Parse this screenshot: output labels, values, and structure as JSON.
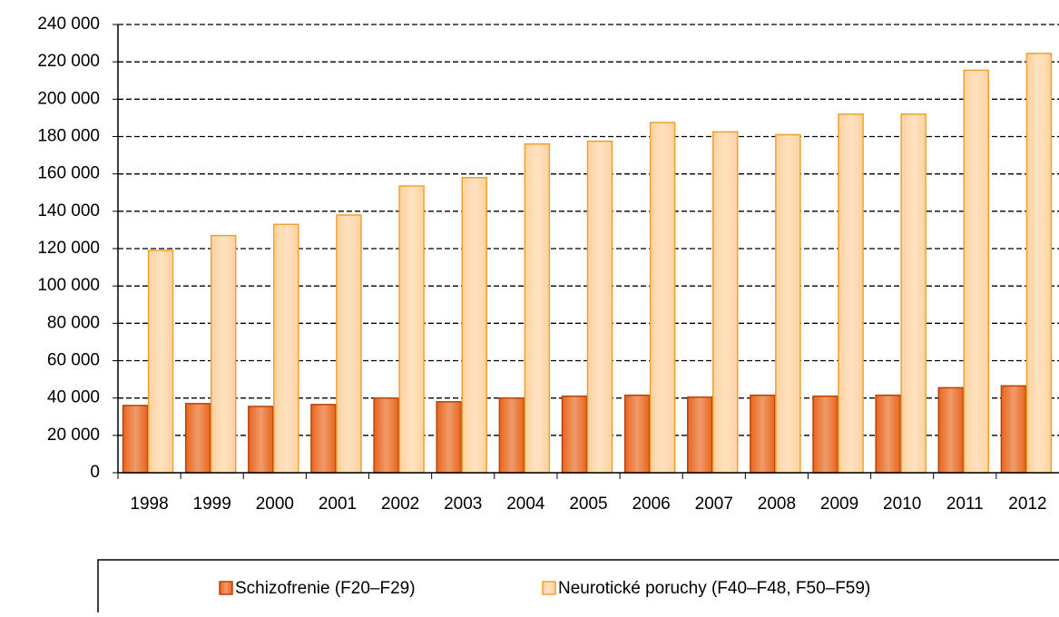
{
  "chart_data": {
    "type": "bar",
    "categories": [
      "1998",
      "1999",
      "2000",
      "2001",
      "2002",
      "2003",
      "2004",
      "2005",
      "2006",
      "2007",
      "2008",
      "2009",
      "2010",
      "2011",
      "2012"
    ],
    "series": [
      {
        "name": "Schizofrenie (F20–F29)",
        "color": "#e8651c",
        "edge": "#b8420a",
        "values": [
          36000,
          37000,
          35500,
          36500,
          40000,
          38000,
          40000,
          41000,
          41500,
          40500,
          41500,
          41000,
          41500,
          45500,
          46500
        ]
      },
      {
        "name": "Neurotické poruchy (F40–F48, F50–F59)",
        "color": "#fdd2a0",
        "edge": "#f0a030",
        "values": [
          119000,
          127000,
          133000,
          138000,
          153500,
          158000,
          176000,
          177500,
          187500,
          182500,
          181000,
          192000,
          192000,
          215500,
          224500
        ]
      }
    ],
    "ylim": [
      0,
      240000
    ],
    "yticks": [
      {
        "value": 0,
        "label": "0"
      },
      {
        "value": 20000,
        "label": "20 000"
      },
      {
        "value": 40000,
        "label": "40 000"
      },
      {
        "value": 60000,
        "label": "60 000"
      },
      {
        "value": 80000,
        "label": "80 000"
      },
      {
        "value": 100000,
        "label": "100 000"
      },
      {
        "value": 120000,
        "label": "120 000"
      },
      {
        "value": 140000,
        "label": "140 000"
      },
      {
        "value": 160000,
        "label": "160 000"
      },
      {
        "value": 180000,
        "label": "180 000"
      },
      {
        "value": 200000,
        "label": "200 000"
      },
      {
        "value": 220000,
        "label": "220 000"
      },
      {
        "value": 240000,
        "label": "240 000"
      }
    ],
    "grid": true,
    "legend": "bottom"
  }
}
